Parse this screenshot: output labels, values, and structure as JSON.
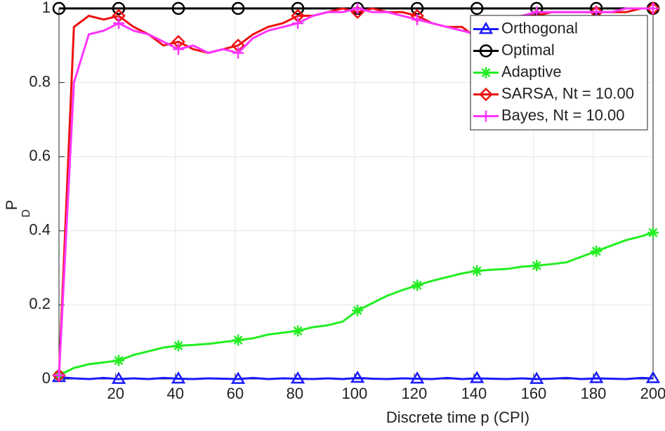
{
  "chart_data": {
    "type": "line",
    "x_label": "Discrete time p (CPI)",
    "y_label": {
      "text": "P",
      "subscript": "D"
    },
    "x": [
      1,
      6,
      11,
      16,
      21,
      26,
      31,
      36,
      41,
      46,
      51,
      56,
      61,
      66,
      71,
      76,
      81,
      86,
      91,
      96,
      101,
      106,
      111,
      116,
      121,
      126,
      131,
      136,
      141,
      146,
      151,
      156,
      161,
      166,
      171,
      176,
      181,
      186,
      191,
      196,
      200
    ],
    "xlim": [
      1,
      200
    ],
    "xticks": [
      20,
      40,
      60,
      80,
      100,
      120,
      140,
      160,
      180,
      200
    ],
    "ylim": [
      0,
      1
    ],
    "yticks": [
      0,
      0.2,
      0.4,
      0.6,
      0.8,
      1
    ],
    "grid": true,
    "legend": "upper-right",
    "series": [
      {
        "name": "Orthogonal",
        "color": "#1a1aff",
        "marker": "triangle",
        "values": [
          0.005,
          0.002,
          0,
          0.003,
          0,
          0.002,
          0,
          0.003,
          0.001,
          0,
          0.002,
          0.001,
          0,
          0.003,
          0,
          0.002,
          0.001,
          0,
          0.002,
          0,
          0.003,
          0.001,
          0,
          0.002,
          0.001,
          0,
          0.003,
          0,
          0.002,
          0.001,
          0,
          0.002,
          0,
          0.001,
          0.003,
          0,
          0.002,
          0.001,
          0,
          0.003,
          0.002
        ]
      },
      {
        "name": "Optimal",
        "color": "#000000",
        "marker": "circle",
        "values": [
          1,
          1,
          1,
          1,
          1,
          1,
          1,
          1,
          1,
          1,
          1,
          1,
          1,
          1,
          1,
          1,
          1,
          1,
          1,
          1,
          1,
          1,
          1,
          1,
          1,
          1,
          1,
          1,
          1,
          1,
          1,
          1,
          1,
          1,
          1,
          1,
          1,
          1,
          1,
          1,
          1
        ]
      },
      {
        "name": "Adaptive",
        "color": "#22ee22",
        "marker": "asterisk",
        "values": [
          0.01,
          0.03,
          0.04,
          0.045,
          0.05,
          0.065,
          0.075,
          0.085,
          0.09,
          0.092,
          0.095,
          0.1,
          0.105,
          0.11,
          0.12,
          0.125,
          0.13,
          0.14,
          0.145,
          0.155,
          0.185,
          0.205,
          0.225,
          0.24,
          0.253,
          0.265,
          0.275,
          0.285,
          0.292,
          0.295,
          0.297,
          0.303,
          0.306,
          0.31,
          0.315,
          0.33,
          0.345,
          0.36,
          0.375,
          0.385,
          0.395
        ]
      },
      {
        "name": "SARSA, Nt = 10.00",
        "color": "#ee1111",
        "marker": "diamond",
        "values": [
          0.01,
          0.95,
          0.98,
          0.97,
          0.98,
          0.95,
          0.93,
          0.9,
          0.91,
          0.89,
          0.88,
          0.89,
          0.9,
          0.93,
          0.95,
          0.96,
          0.98,
          0.98,
          0.99,
          1.0,
          0.99,
          1.0,
          0.99,
          0.99,
          0.98,
          0.96,
          0.95,
          0.95,
          0.92,
          0.95,
          0.97,
          0.98,
          0.98,
          0.99,
          0.99,
          0.99,
          0.99,
          0.99,
          0.99,
          1.0,
          1.0
        ]
      },
      {
        "name": "Bayes, Nt = 10.00",
        "color": "#ff33ff",
        "marker": "plus",
        "values": [
          0.01,
          0.8,
          0.93,
          0.94,
          0.96,
          0.94,
          0.93,
          0.91,
          0.89,
          0.9,
          0.88,
          0.89,
          0.88,
          0.92,
          0.94,
          0.95,
          0.96,
          0.98,
          0.99,
          0.99,
          1.0,
          0.99,
          0.99,
          0.98,
          0.97,
          0.96,
          0.95,
          0.94,
          0.93,
          0.96,
          0.97,
          0.98,
          0.99,
          0.99,
          0.99,
          0.99,
          0.99,
          0.99,
          1.0,
          1.0,
          1.0
        ]
      }
    ]
  }
}
